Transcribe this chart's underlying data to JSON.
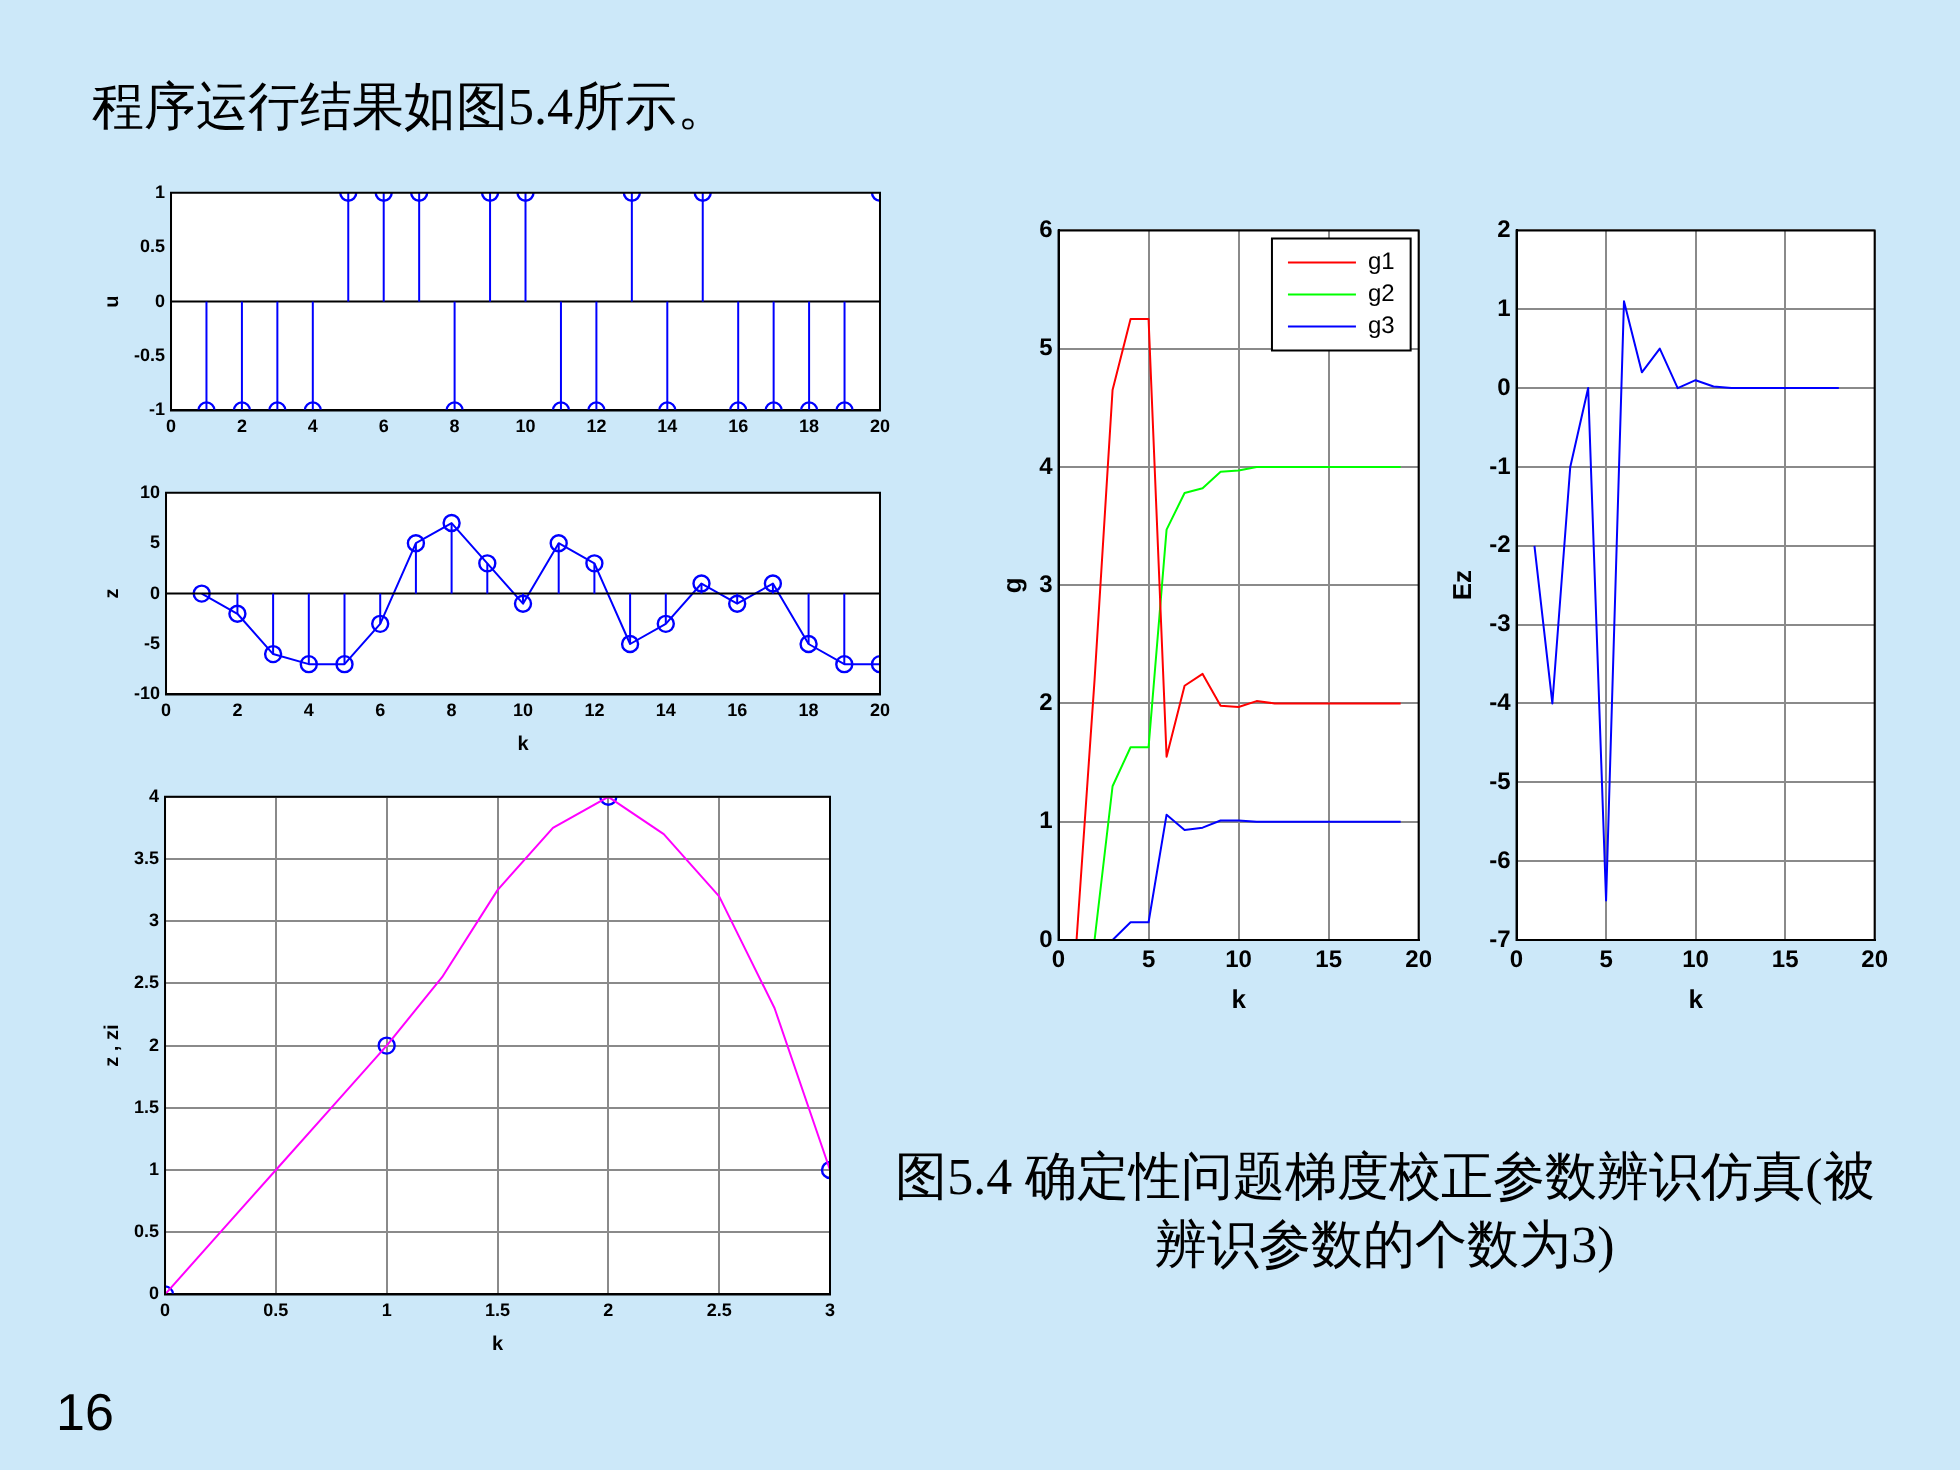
{
  "chart_data": [
    {
      "type": "lollipop",
      "title": "程序运行结果如图5.4所示。",
      "ylabel": "u",
      "x": [
        1,
        2,
        3,
        4,
        5,
        6,
        7,
        8,
        9,
        10,
        11,
        12,
        13,
        14,
        15,
        16,
        17,
        18,
        19,
        20
      ],
      "values": [
        -1,
        -1,
        -1,
        -1,
        1,
        1,
        1,
        -1,
        1,
        1,
        -1,
        -1,
        1,
        -1,
        1,
        -1,
        -1,
        -1,
        -1,
        1
      ],
      "color": "#0000ff",
      "marker": "circle",
      "xlim": [
        0,
        20
      ],
      "xticks": [
        0,
        2,
        4,
        6,
        8,
        10,
        12,
        14,
        16,
        18,
        20
      ],
      "ylim": [
        -1,
        1
      ],
      "yticks": [
        -1,
        -0.5,
        0,
        0.5,
        1
      ]
    },
    {
      "type": "lollipop",
      "xlabel": "k",
      "ylabel": "z",
      "x": [
        1,
        2,
        3,
        4,
        5,
        6,
        7,
        8,
        9,
        10,
        11,
        12,
        13,
        14,
        15,
        16,
        17,
        18,
        19,
        20
      ],
      "series": [
        {
          "color": "#0000ff",
          "marker": "circle",
          "values": [
            0,
            -2,
            -6,
            -7,
            -7,
            -3,
            5,
            7,
            3,
            -1,
            5,
            3,
            -5,
            -3,
            1,
            -1,
            1,
            -5,
            -7,
            -7
          ]
        },
        {
          "type": "line",
          "color": "#0000ff",
          "marker": "none",
          "values": [
            0,
            -2,
            -6,
            -7,
            -7,
            -3,
            5,
            7,
            3,
            -1,
            5,
            3,
            -5,
            -3,
            1,
            -1,
            1,
            -5,
            -7,
            -7
          ]
        }
      ],
      "xlim": [
        0,
        20
      ],
      "xticks": [
        0,
        2,
        4,
        6,
        8,
        10,
        12,
        14,
        16,
        18,
        20
      ],
      "ylim": [
        -10,
        10
      ],
      "yticks": [
        -10,
        -5,
        0,
        5,
        10
      ]
    },
    {
      "type": "line",
      "xlabel": "k",
      "ylabel": "z , zi",
      "grid": true,
      "series": [
        {
          "color": "#ff00ff",
          "marker": "none",
          "x": [
            0,
            0.25,
            0.5,
            0.75,
            1,
            1.25,
            1.5,
            1.75,
            2,
            2.25,
            2.5,
            2.75,
            3
          ],
          "values": [
            0,
            0.5,
            1,
            1.5,
            2,
            2.55,
            3.25,
            3.75,
            4,
            3.7,
            3.2,
            2.3,
            1
          ]
        },
        {
          "type": "scatter",
          "color": "#0000ff",
          "marker": "circle",
          "x": [
            0,
            1,
            2,
            3
          ],
          "values": [
            0,
            2,
            4,
            1
          ]
        }
      ],
      "xlim": [
        0,
        3
      ],
      "xticks": [
        0,
        0.5,
        1,
        1.5,
        2,
        2.5,
        3
      ],
      "ylim": [
        0,
        4
      ],
      "yticks": [
        0,
        0.5,
        1,
        1.5,
        2,
        2.5,
        3,
        3.5,
        4
      ],
      "annotations": [
        "图5.4 确定性问题梯度校正参数辨识仿真(被辨识参数的个数为3)",
        "16"
      ]
    },
    {
      "type": "line",
      "xlabel": "k",
      "ylabel": "g",
      "grid": true,
      "legend": "top right",
      "x": [
        1,
        2,
        3,
        4,
        5,
        6,
        7,
        8,
        9,
        10,
        11,
        12,
        13,
        14,
        15,
        16,
        17,
        18,
        19
      ],
      "series": [
        {
          "name": "g1",
          "color": "#ff0000",
          "values": [
            0,
            2.2,
            4.65,
            5.25,
            5.25,
            1.55,
            2.15,
            2.25,
            1.98,
            1.97,
            2.02,
            2,
            2,
            2,
            2,
            2,
            2,
            2,
            2
          ]
        },
        {
          "name": "g2",
          "color": "#00ff00",
          "values": [
            0,
            0,
            1.3,
            1.63,
            1.63,
            3.47,
            3.78,
            3.82,
            3.96,
            3.97,
            4,
            4,
            4,
            4,
            4,
            4,
            4,
            4,
            4
          ]
        },
        {
          "name": "g3",
          "color": "#0000ff",
          "values": [
            0,
            0,
            0,
            0.15,
            0.15,
            1.06,
            0.93,
            0.95,
            1.01,
            1.01,
            1,
            1,
            1,
            1,
            1,
            1,
            1,
            1,
            1
          ]
        }
      ],
      "xlim": [
        0,
        20
      ],
      "xticks": [
        0,
        5,
        10,
        15,
        20
      ],
      "ylim": [
        0,
        6
      ],
      "yticks": [
        0,
        1,
        2,
        3,
        4,
        5,
        6
      ]
    },
    {
      "type": "line",
      "xlabel": "k",
      "ylabel": "Ez",
      "grid": true,
      "color": "#0000ff",
      "x": [
        1,
        2,
        3,
        4,
        5,
        6,
        7,
        8,
        9,
        10,
        11,
        12,
        13,
        14,
        15,
        16,
        17,
        18
      ],
      "values": [
        -2,
        -4,
        -1,
        0,
        -6.5,
        1.1,
        0.2,
        0.5,
        0,
        0.1,
        0.02,
        0,
        0,
        0,
        0,
        0,
        0,
        0
      ],
      "xlim": [
        0,
        20
      ],
      "xticks": [
        0,
        5,
        10,
        15,
        20
      ],
      "ylim": [
        -7,
        2
      ],
      "yticks": [
        -7,
        -6,
        -5,
        -4,
        -3,
        -2,
        -1,
        0,
        1,
        2
      ]
    }
  ]
}
